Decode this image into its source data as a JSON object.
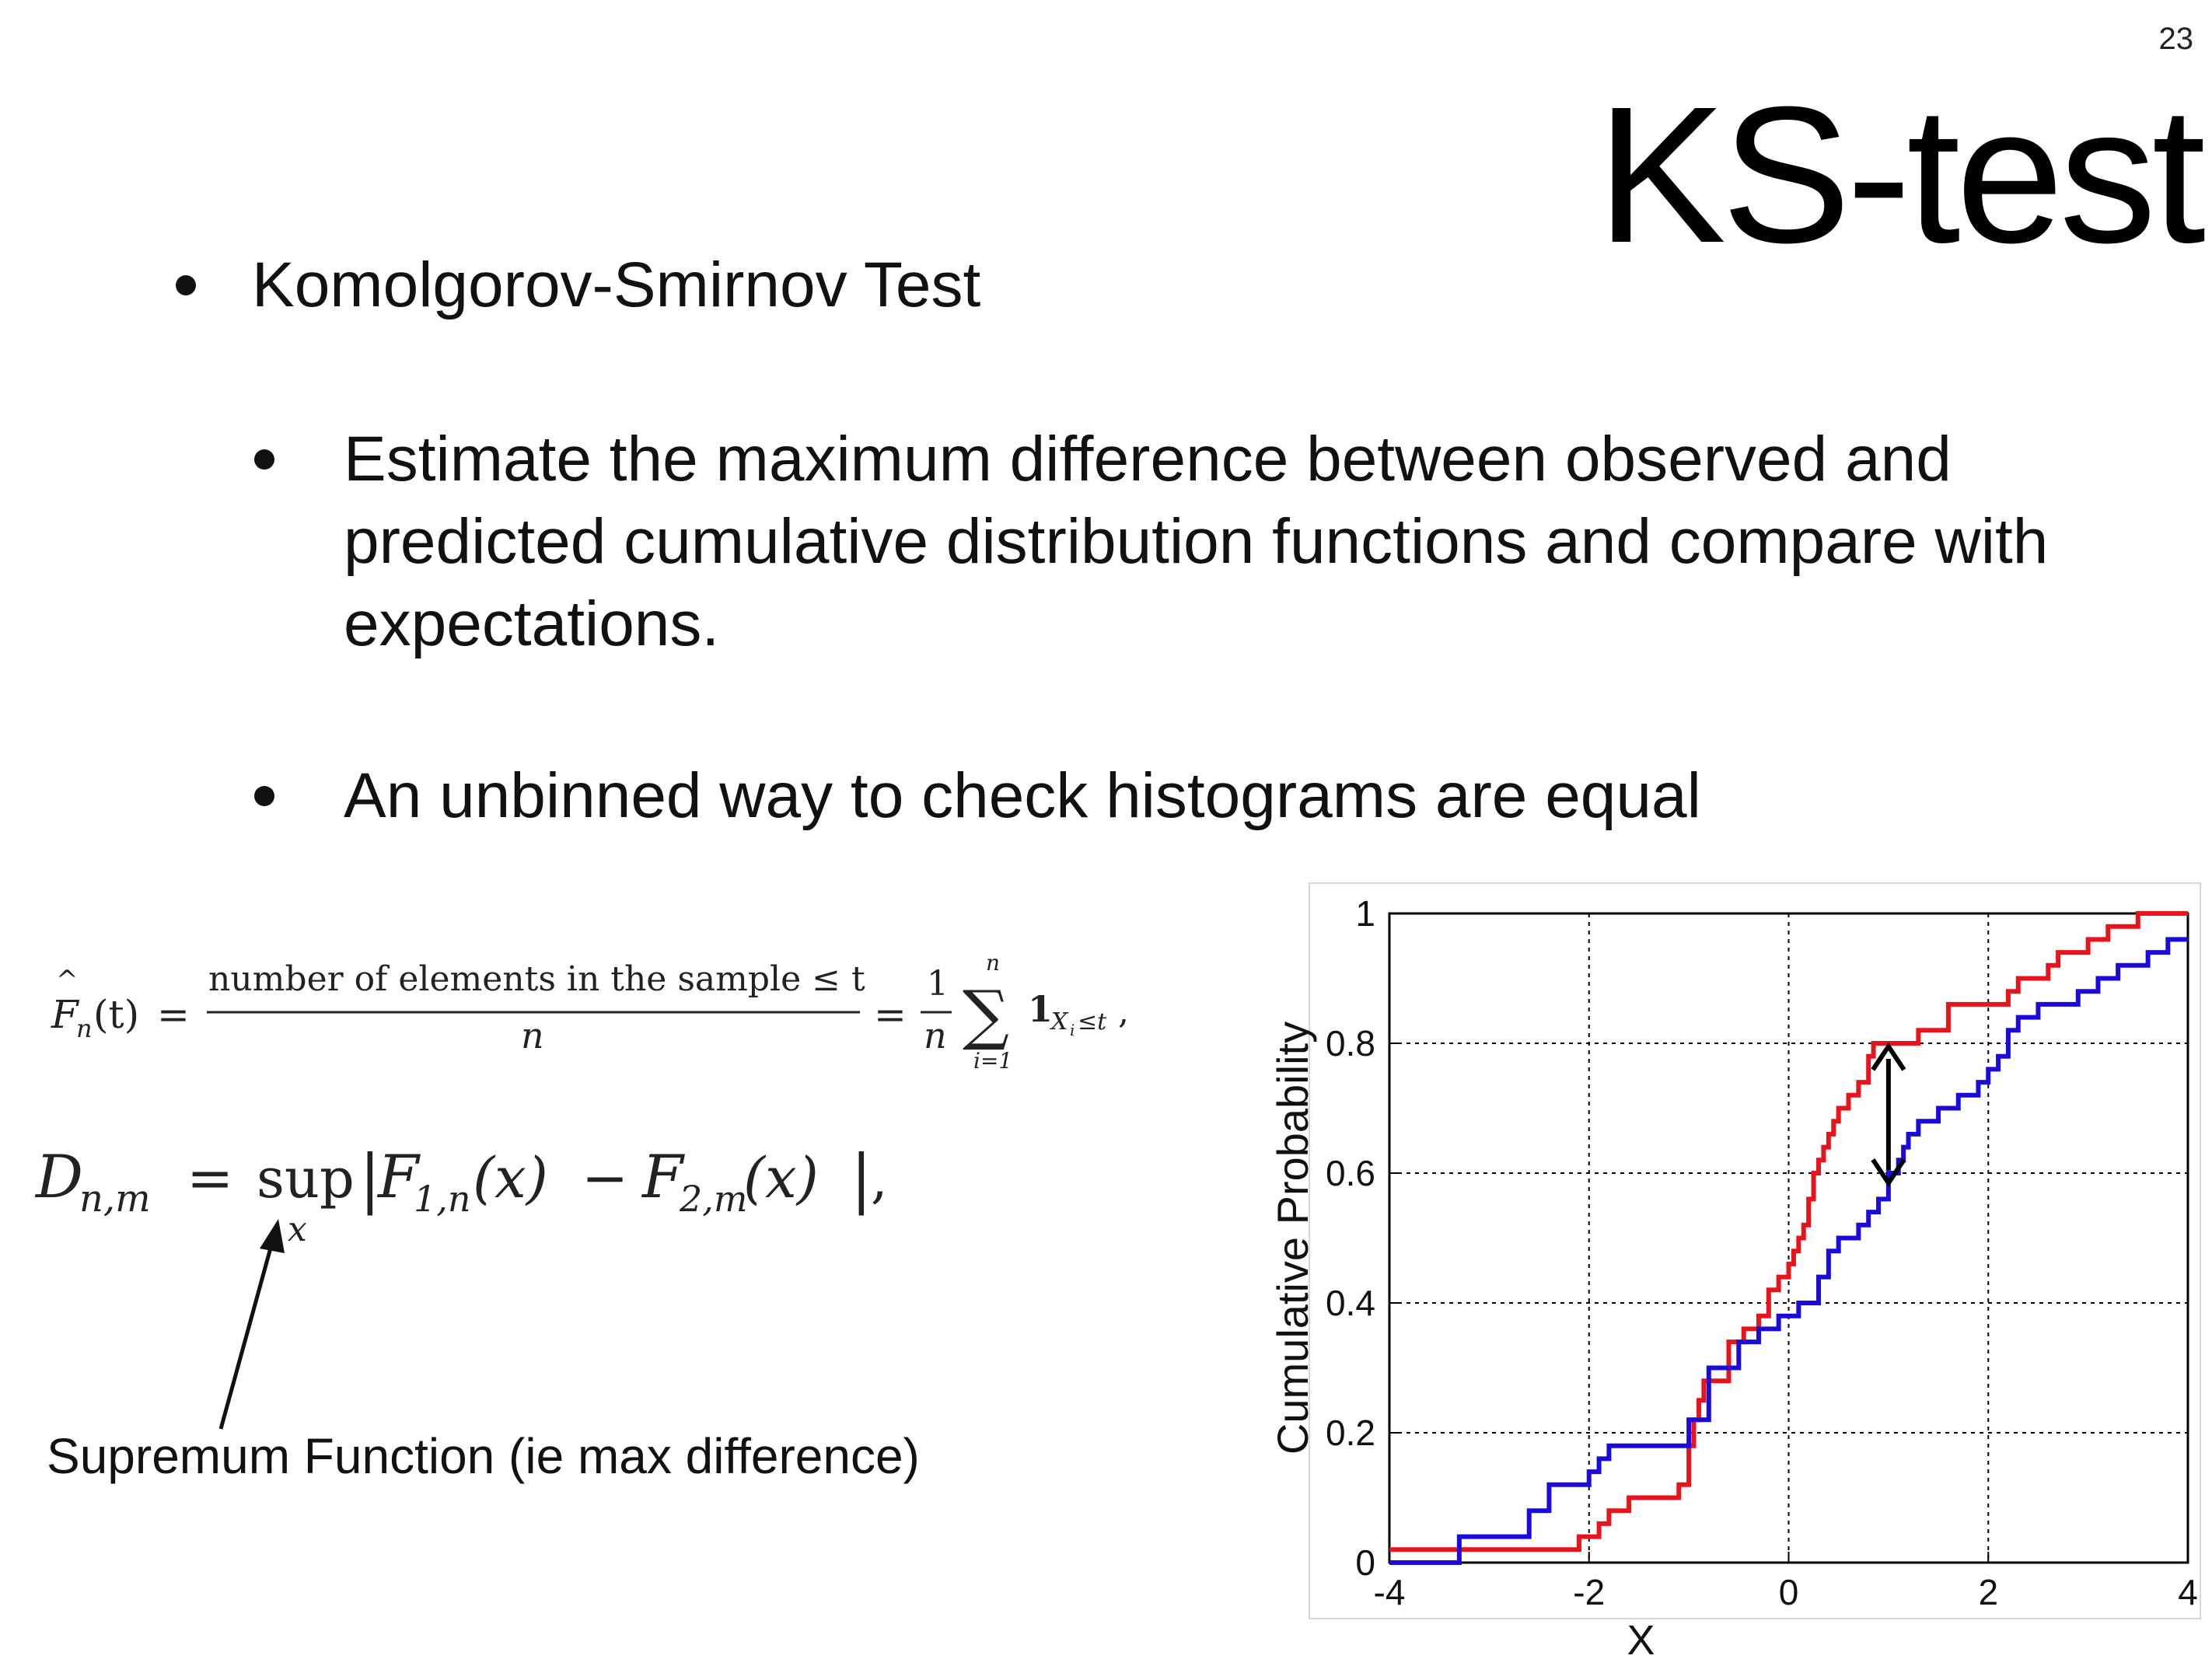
{
  "slide": {
    "number": "23",
    "title": "KS-test"
  },
  "bullets": {
    "b1": "Komolgorov-Smirnov Test",
    "b2": "Estimate the maximum difference between observed and predicted cumulative distribution functions and compare with expectations.",
    "b3": "An unbinned way to check histograms are equal"
  },
  "formula1": {
    "lhs": "F",
    "lhs_sub": "n",
    "lhs_arg": "(t)",
    "equals": "=",
    "numerator": "number of elements in the sample ≤ t",
    "denominator": "n",
    "frac_one_num": "1",
    "frac_one_den": "n",
    "sum_symbol": "∑",
    "sum_upper": "n",
    "sum_lower": "i=1",
    "indicator": "1",
    "indicator_sub": "X",
    "indicator_sub_i": "i",
    "indicator_cond": "≤t",
    "trailing": ","
  },
  "formula2": {
    "D": "D",
    "D_sub": "n,m",
    "equals": "=",
    "sup": "sup",
    "sup_sub": "x",
    "bar_left": "|",
    "F1": "F",
    "F1_sub": "1,n",
    "F1_arg": "(x)",
    "minus": "−",
    "F2": "F",
    "F2_sub": "2,m",
    "F2_arg": "(x)",
    "bar_right": "|",
    "trailing": ","
  },
  "annotation": {
    "supremum_label": "Supremum Function (ie max difference)"
  },
  "chart_data": {
    "type": "line",
    "subtype": "empirical-cdf-step",
    "xlabel": "X",
    "ylabel": "Cumulative Probability",
    "xlim": [
      -4,
      4
    ],
    "ylim": [
      0,
      1
    ],
    "xticks": [
      "-4",
      "-2",
      "0",
      "2",
      "4"
    ],
    "yticks": [
      "0",
      "0.2",
      "0.4",
      "0.6",
      "0.8",
      "1"
    ],
    "grid": "dashed",
    "legend": "none",
    "series": [
      {
        "color": "#e8141c",
        "x": [
          -4.0,
          -2.2,
          -2.1,
          -1.9,
          -1.8,
          -1.6,
          -1.1,
          -1.0,
          -0.95,
          -0.9,
          -0.85,
          -0.6,
          -0.45,
          -0.3,
          -0.2,
          -0.1,
          0.0,
          0.05,
          0.1,
          0.15,
          0.2,
          0.25,
          0.3,
          0.35,
          0.4,
          0.45,
          0.5,
          0.6,
          0.7,
          0.8,
          0.85,
          1.3,
          1.6,
          2.2,
          2.3,
          2.6,
          2.7,
          3.0,
          3.2,
          3.5,
          4.0
        ],
        "y": [
          0.02,
          0.02,
          0.04,
          0.06,
          0.08,
          0.1,
          0.12,
          0.18,
          0.22,
          0.25,
          0.28,
          0.34,
          0.36,
          0.38,
          0.42,
          0.44,
          0.46,
          0.48,
          0.5,
          0.52,
          0.56,
          0.6,
          0.62,
          0.64,
          0.66,
          0.68,
          0.7,
          0.72,
          0.74,
          0.78,
          0.8,
          0.82,
          0.86,
          0.88,
          0.9,
          0.92,
          0.94,
          0.96,
          0.98,
          1.0,
          1.0
        ]
      },
      {
        "color": "#1a0bdc",
        "x": [
          -4.0,
          -3.3,
          -2.6,
          -2.4,
          -2.0,
          -1.9,
          -1.8,
          -1.0,
          -0.8,
          -0.5,
          -0.3,
          -0.1,
          0.1,
          0.3,
          0.4,
          0.5,
          0.7,
          0.8,
          0.9,
          1.0,
          1.1,
          1.15,
          1.2,
          1.3,
          1.5,
          1.7,
          1.9,
          2.0,
          2.1,
          2.2,
          2.3,
          2.5,
          2.9,
          3.1,
          3.3,
          3.6,
          3.8,
          4.0
        ],
        "y": [
          0.0,
          0.04,
          0.08,
          0.12,
          0.14,
          0.16,
          0.18,
          0.22,
          0.3,
          0.34,
          0.36,
          0.38,
          0.4,
          0.44,
          0.48,
          0.5,
          0.52,
          0.54,
          0.56,
          0.6,
          0.62,
          0.64,
          0.66,
          0.68,
          0.7,
          0.72,
          0.74,
          0.76,
          0.78,
          0.82,
          0.84,
          0.86,
          0.88,
          0.9,
          0.92,
          0.94,
          0.96,
          0.96
        ]
      }
    ],
    "annotation": {
      "type": "double-arrow",
      "x": 1.0,
      "y_from": 0.8,
      "y_to": 0.58,
      "color": "#000000"
    }
  }
}
